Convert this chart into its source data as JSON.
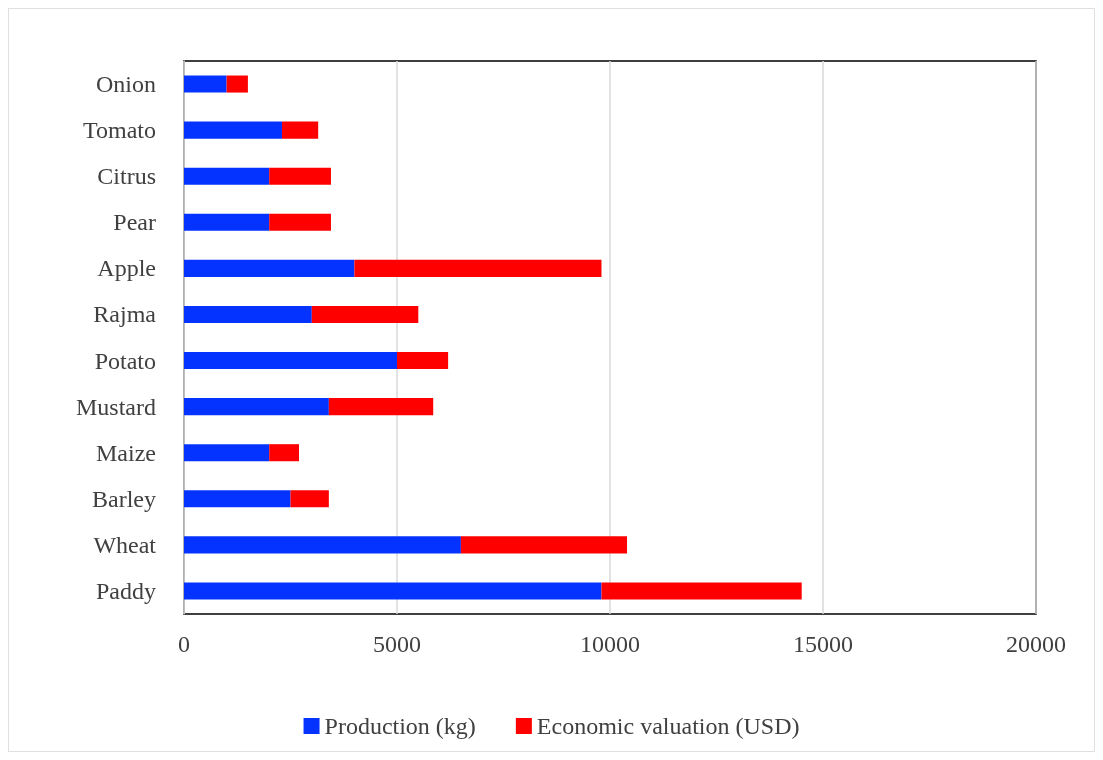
{
  "chart_data": {
    "type": "bar",
    "orientation": "horizontal",
    "stacked": true,
    "categories": [
      "Onion",
      "Tomato",
      "Citrus",
      "Pear",
      "Apple",
      "Rajma",
      "Potato",
      "Mustard",
      "Maize",
      "Barley",
      "Wheat",
      "Paddy"
    ],
    "series": [
      {
        "name": "Production (kg)",
        "color": "#0433ff",
        "values": [
          1000,
          2300,
          2000,
          2000,
          4000,
          3000,
          5000,
          3400,
          2000,
          2500,
          6500,
          9800
        ]
      },
      {
        "name": "Economic valuation (USD)",
        "color": "#ff0000",
        "values": [
          500,
          850,
          1450,
          1450,
          5800,
          2500,
          1200,
          2450,
          700,
          900,
          3900,
          4700
        ]
      }
    ],
    "xlim": [
      0,
      20000
    ],
    "xticks": [
      0,
      5000,
      10000,
      15000,
      20000
    ],
    "grid": "x",
    "legend": "bottom"
  }
}
